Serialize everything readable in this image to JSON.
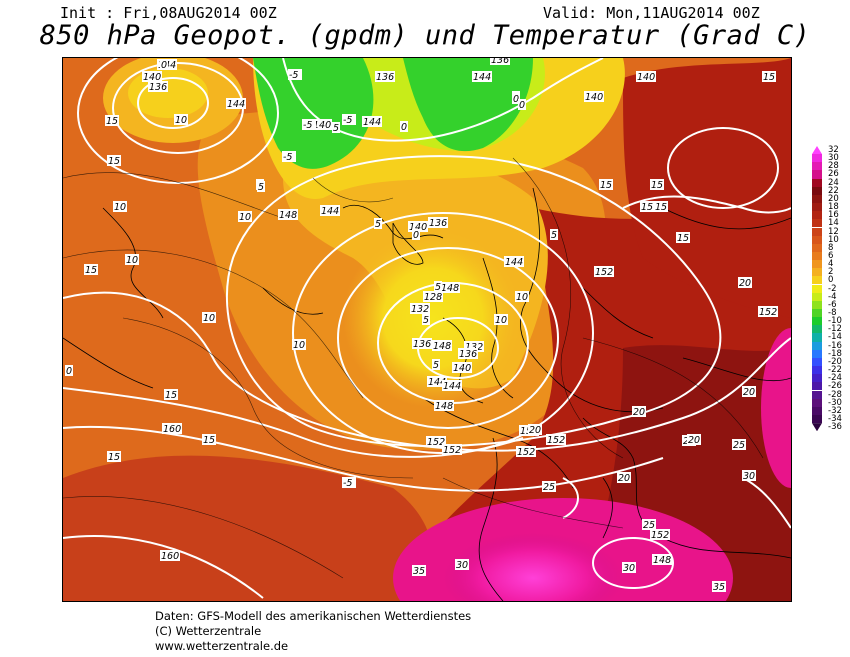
{
  "header": {
    "init": "Init : Fri,08AUG2014 00Z",
    "valid": "Valid: Mon,11AUG2014 00Z",
    "title": "850 hPa Geopot. (gpdm) und Temperatur (Grad C)"
  },
  "colors": {
    "dark_red": "#7a0a0f",
    "red": "#b01f10",
    "red_orange": "#c8401a",
    "orange": "#de6a1c",
    "light_orange": "#eb8f1d",
    "yellow_orange": "#f4b520",
    "yellow": "#f6df1c",
    "lime": "#c8ec19",
    "green": "#34d12c",
    "magenta": "#e8148a",
    "pink": "#ff2ec8"
  },
  "legend": {
    "labels": [
      "32",
      "30",
      "28",
      "26",
      "24",
      "22",
      "20",
      "18",
      "16",
      "14",
      "12",
      "10",
      "8",
      "6",
      "4",
      "2",
      "0",
      "-2",
      "-4",
      "-6",
      "-8",
      "-10",
      "-12",
      "-14",
      "-16",
      "-18",
      "-20",
      "-22",
      "-24",
      "-26",
      "-28",
      "-30",
      "-32",
      "-34",
      "-36"
    ],
    "colors": [
      "#ff40ff",
      "#f028e0",
      "#e41ab4",
      "#d4108a",
      "#a00820",
      "#7a0a0f",
      "#8e1410",
      "#a01c12",
      "#b22412",
      "#c03214",
      "#cc4418",
      "#d8561a",
      "#e0681c",
      "#e87c1e",
      "#f0961e",
      "#f4b020",
      "#f6d01c",
      "#f0ec18",
      "#c8ec19",
      "#8ee21e",
      "#4fd426",
      "#1ccc2c",
      "#14b86a",
      "#10b0a8",
      "#1c9ce0",
      "#2878ff",
      "#3450ff",
      "#3c30e8",
      "#4420c8",
      "#4c18a8",
      "#541490",
      "#5c107a",
      "#4a0a66",
      "#3a0652",
      "#2a023e"
    ]
  },
  "map": {
    "geopotential_labels": [
      "144",
      "140",
      "136",
      "144",
      "136",
      "140",
      "144",
      "136",
      "140",
      "144",
      "140",
      "148",
      "144",
      "140",
      "136",
      "148",
      "144",
      "128",
      "132",
      "136",
      "132",
      "136",
      "140",
      "144",
      "148",
      "152",
      "152",
      "152",
      "160",
      "152",
      "152",
      "148",
      "152",
      "148",
      "160",
      "144",
      "152",
      "152"
    ],
    "temperature_labels": [
      "0",
      "-5",
      "-5",
      "-5",
      "0",
      "-5",
      "0",
      "15",
      "10",
      "15",
      "15",
      "5",
      "10",
      "10",
      "10",
      "10",
      "10",
      "5",
      "5",
      "5",
      "5",
      "0",
      "0",
      "0",
      "5",
      "5",
      "10",
      "10",
      "15",
      "15",
      "15",
      "15",
      "15",
      "15",
      "15",
      "15",
      "15",
      "20",
      "20",
      "20",
      "20",
      "20",
      "20",
      "20",
      "25",
      "25",
      "25",
      "30",
      "30",
      "30",
      "35",
      "35",
      "5",
      "0",
      "-5"
    ]
  },
  "footer": {
    "line1": "Daten: GFS-Modell des amerikanischen Wetterdienstes",
    "line2": "(C) Wetterzentrale",
    "line3": "www.wetterzentrale.de"
  }
}
